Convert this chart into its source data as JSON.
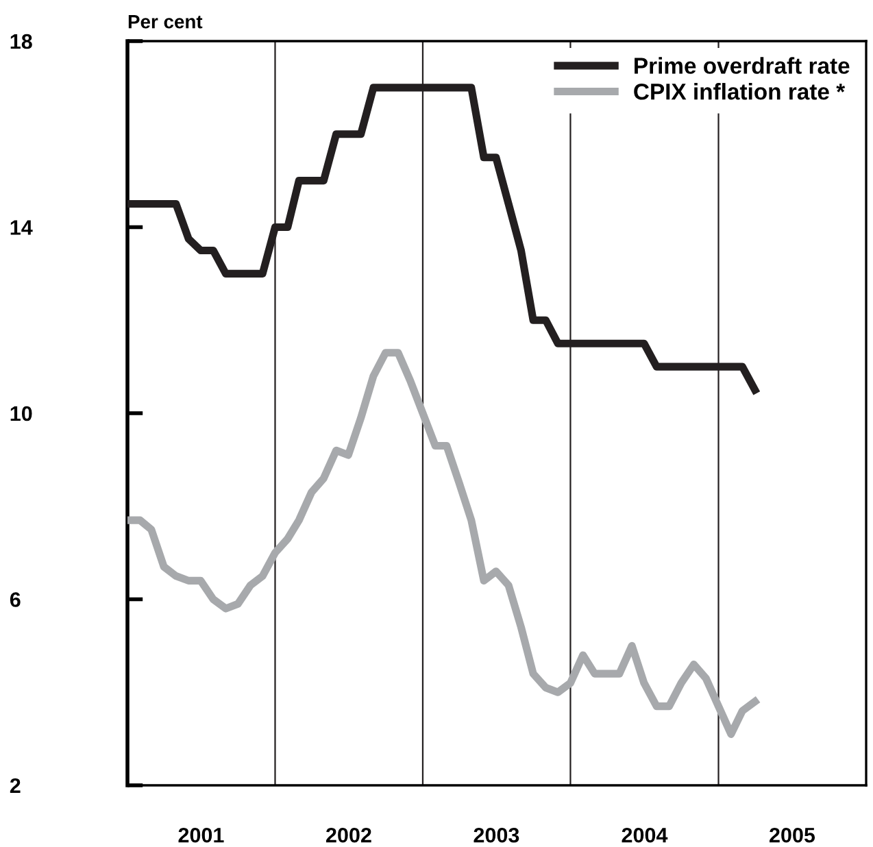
{
  "chart_data": {
    "type": "line",
    "ylabel": "Per cent",
    "x": [
      "2001-01",
      "2001-02",
      "2001-03",
      "2001-04",
      "2001-05",
      "2001-06",
      "2001-07",
      "2001-08",
      "2001-09",
      "2001-10",
      "2001-11",
      "2001-12",
      "2002-01",
      "2002-02",
      "2002-03",
      "2002-04",
      "2002-05",
      "2002-06",
      "2002-07",
      "2002-08",
      "2002-09",
      "2002-10",
      "2002-11",
      "2002-12",
      "2003-01",
      "2003-02",
      "2003-03",
      "2003-04",
      "2003-05",
      "2003-06",
      "2003-07",
      "2003-08",
      "2003-09",
      "2003-10",
      "2003-11",
      "2003-12",
      "2004-01",
      "2004-02",
      "2004-03",
      "2004-04",
      "2004-05",
      "2004-06",
      "2004-07",
      "2004-08",
      "2004-09",
      "2004-10",
      "2004-11",
      "2004-12",
      "2005-01",
      "2005-02",
      "2005-03",
      "2005-04"
    ],
    "series": [
      {
        "name": "Prime overdraft rate",
        "color": "#231f20",
        "values": [
          14.5,
          14.5,
          14.5,
          14.5,
          14.5,
          13.75,
          13.5,
          13.5,
          13.0,
          13.0,
          13.0,
          13.0,
          14.0,
          14.0,
          15.0,
          15.0,
          15.0,
          16.0,
          16.0,
          16.0,
          17.0,
          17.0,
          17.0,
          17.0,
          17.0,
          17.0,
          17.0,
          17.0,
          17.0,
          15.5,
          15.5,
          14.5,
          13.5,
          12.0,
          12.0,
          11.5,
          11.5,
          11.5,
          11.5,
          11.5,
          11.5,
          11.5,
          11.5,
          11.0,
          11.0,
          11.0,
          11.0,
          11.0,
          11.0,
          11.0,
          11.0,
          10.5
        ]
      },
      {
        "name": "CPIX inflation rate *",
        "color": "#a7a9ac",
        "values": [
          7.7,
          7.7,
          7.5,
          6.7,
          6.5,
          6.4,
          6.4,
          6.0,
          5.8,
          5.9,
          6.3,
          6.5,
          7.0,
          7.3,
          7.7,
          8.3,
          8.6,
          9.2,
          9.1,
          9.9,
          10.8,
          11.3,
          11.3,
          10.7,
          10.0,
          9.3,
          9.3,
          8.5,
          7.7,
          6.4,
          6.6,
          6.3,
          5.4,
          4.4,
          4.1,
          4.0,
          4.2,
          4.8,
          4.4,
          4.4,
          4.4,
          5.0,
          4.2,
          3.7,
          3.7,
          4.2,
          4.6,
          4.3,
          3.7,
          3.1,
          3.6,
          3.8
        ]
      }
    ],
    "xlim": [
      "2001-01-01",
      "2006-01-01"
    ],
    "xticks": [
      {
        "value": "2001-07-02",
        "label": "2001"
      },
      {
        "value": "2002-07-02",
        "label": "2002"
      },
      {
        "value": "2003-07-02",
        "label": "2003"
      },
      {
        "value": "2004-07-02",
        "label": "2004"
      },
      {
        "value": "2005-07-02",
        "label": "2005"
      }
    ],
    "ylim": [
      2,
      18
    ],
    "yticks": [
      2,
      6,
      10,
      14,
      18
    ],
    "ref_lines": [
      {
        "axis": "x",
        "value": "2002-01-01",
        "color": "#231f20"
      },
      {
        "axis": "x",
        "value": "2003-01-01",
        "color": "#231f20"
      },
      {
        "axis": "x",
        "value": "2004-01-01",
        "color": "#231f20"
      },
      {
        "axis": "x",
        "value": "2005-01-01",
        "color": "#231f20"
      }
    ],
    "legend": "top right",
    "grid": false,
    "line_style": "solid"
  }
}
